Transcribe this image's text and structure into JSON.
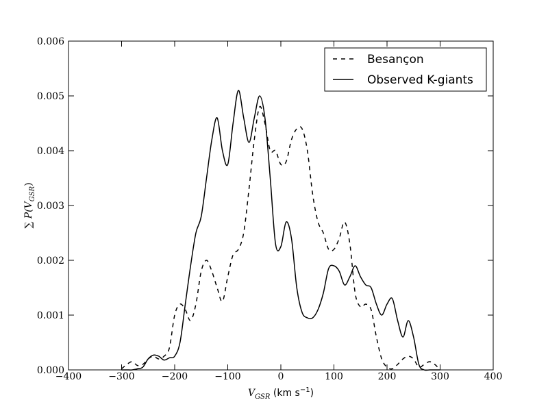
{
  "chart_data": {
    "type": "line",
    "xlabel": [
      "V",
      "GSR",
      " (km s",
      "−1",
      ")"
    ],
    "ylabel": [
      "∑ P(V",
      "GSR",
      ")"
    ],
    "x": [
      -300,
      -290,
      -280,
      -270,
      -260,
      -250,
      -240,
      -230,
      -220,
      -210,
      -200,
      -190,
      -180,
      -170,
      -160,
      -150,
      -140,
      -130,
      -120,
      -110,
      -100,
      -90,
      -80,
      -70,
      -60,
      -50,
      -40,
      -30,
      -20,
      -10,
      0,
      10,
      20,
      30,
      40,
      50,
      60,
      70,
      80,
      90,
      100,
      110,
      120,
      130,
      140,
      150,
      160,
      170,
      180,
      190,
      200,
      210,
      220,
      230,
      240,
      250,
      260,
      270,
      280,
      290,
      300
    ],
    "series": [
      {
        "name": "Besançon",
        "color": "#000000",
        "dash": true,
        "values": [
          2e-05,
          0.0001,
          0.00015,
          8e-05,
          0.0001,
          0.0002,
          0.00025,
          0.0002,
          0.00025,
          0.0004,
          0.001,
          0.0012,
          0.0011,
          0.0009,
          0.0012,
          0.0018,
          0.002,
          0.0018,
          0.0015,
          0.00125,
          0.0017,
          0.0021,
          0.0022,
          0.0025,
          0.0033,
          0.0042,
          0.0048,
          0.0045,
          0.004,
          0.004,
          0.00375,
          0.0038,
          0.0042,
          0.0044,
          0.0044,
          0.004,
          0.0032,
          0.0027,
          0.0025,
          0.0022,
          0.0022,
          0.0024,
          0.0027,
          0.0023,
          0.0014,
          0.00115,
          0.0012,
          0.0011,
          0.0006,
          0.0002,
          5e-05,
          2e-05,
          0.0001,
          0.0002,
          0.00025,
          0.0002,
          5e-05,
          0.0001,
          0.00015,
          0.0001,
          0
        ]
      },
      {
        "name": "Observed K-giants",
        "color": "#000000",
        "dash": false,
        "values": [
          0,
          0,
          0,
          2e-05,
          5e-05,
          0.0002,
          0.00027,
          0.00025,
          0.00018,
          0.00022,
          0.00025,
          0.0005,
          0.0012,
          0.0019,
          0.0025,
          0.0028,
          0.0035,
          0.0042,
          0.0046,
          0.004,
          0.00375,
          0.0045,
          0.0051,
          0.0046,
          0.00415,
          0.0046,
          0.005,
          0.0046,
          0.0035,
          0.0023,
          0.00225,
          0.0027,
          0.0024,
          0.0015,
          0.00105,
          0.00095,
          0.00095,
          0.0011,
          0.0014,
          0.00185,
          0.0019,
          0.0018,
          0.00155,
          0.0017,
          0.0019,
          0.0017,
          0.00155,
          0.0015,
          0.0012,
          0.001,
          0.0012,
          0.0013,
          0.0009,
          0.0006,
          0.0009,
          0.0006,
          0.0001,
          0,
          0,
          0,
          0
        ]
      }
    ],
    "xlim": [
      -400,
      400
    ],
    "xticks": [
      {
        "value": -400,
        "label": "−400"
      },
      {
        "value": -300,
        "label": "−300"
      },
      {
        "value": -200,
        "label": "−200"
      },
      {
        "value": -100,
        "label": "−100"
      },
      0,
      100,
      200,
      300,
      400
    ],
    "ylim": [
      0,
      0.006
    ],
    "yticks": [
      {
        "value": 0,
        "label": "0.000"
      },
      {
        "value": 0.001,
        "label": "0.001"
      },
      {
        "value": 0.002,
        "label": "0.002"
      },
      {
        "value": 0.003,
        "label": "0.003"
      },
      {
        "value": 0.004,
        "label": "0.004"
      },
      {
        "value": 0.005,
        "label": "0.005"
      },
      {
        "value": 0.006,
        "label": "0.006"
      }
    ],
    "legend": "upper right"
  }
}
